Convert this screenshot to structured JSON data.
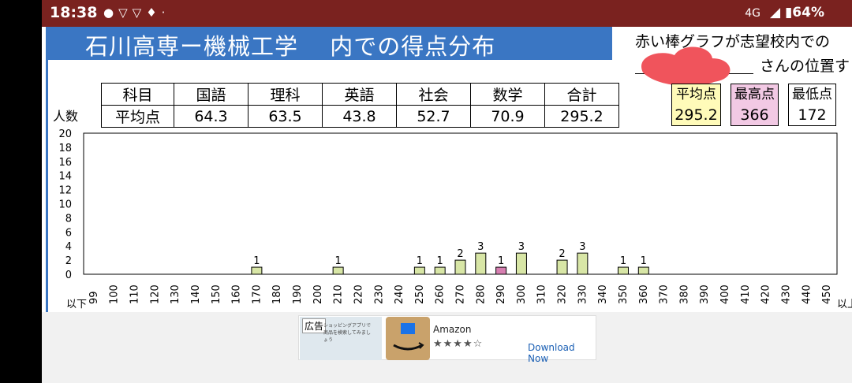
{
  "status": {
    "time": "18:38",
    "notif_icons": [
      "line-icon",
      "notification-icon",
      "notification-icon",
      "location-icon",
      "dot-icon"
    ],
    "network": "4G",
    "battery": "64%"
  },
  "viewer": {
    "title": "石川高専ー機械工学　 内での得点分布",
    "note_line1": "赤い棒グラフが志望校内での",
    "note_line2": "さんの位置す"
  },
  "scores": {
    "row1": [
      "科目",
      "国語",
      "理科",
      "英語",
      "社会",
      "数学",
      "合計"
    ],
    "row2": [
      "平均点",
      "64.3",
      "63.5",
      "43.8",
      "52.7",
      "70.9",
      "295.2"
    ]
  },
  "stats": [
    {
      "label": "平均点",
      "value": "295.2",
      "bg": "#fffbb9"
    },
    {
      "label": "最高点",
      "value": "366",
      "bg": "#f2c9e4"
    },
    {
      "label": "最低点",
      "value": "172",
      "bg": "#ffffff"
    }
  ],
  "chart_data": {
    "type": "bar",
    "ylabel": "人数",
    "ylim": [
      0,
      20
    ],
    "yticks": [
      0,
      2,
      4,
      6,
      8,
      10,
      12,
      14,
      16,
      18,
      20
    ],
    "categories": [
      "99",
      "100",
      "110",
      "120",
      "130",
      "140",
      "150",
      "160",
      "170",
      "180",
      "190",
      "200",
      "210",
      "220",
      "230",
      "240",
      "250",
      "260",
      "270",
      "280",
      "290",
      "300",
      "310",
      "320",
      "330",
      "340",
      "350",
      "360",
      "370",
      "380",
      "390",
      "400",
      "410",
      "420",
      "430",
      "440",
      "450"
    ],
    "first_sublabel": "以下",
    "last_sublabel": "以上",
    "values": [
      0,
      0,
      0,
      0,
      0,
      0,
      0,
      0,
      1,
      0,
      0,
      0,
      1,
      0,
      0,
      0,
      1,
      1,
      2,
      3,
      1,
      3,
      0,
      2,
      3,
      0,
      1,
      1,
      0,
      0,
      0,
      0,
      0,
      0,
      0,
      0,
      0
    ],
    "highlight_category": "290",
    "colors": {
      "bar": "#d8e6a6",
      "highlight": "#d77fb1"
    }
  },
  "ad": {
    "tag": "広告",
    "small_text": "ショッピングアプリで 商品を検索してみましょう",
    "title": "Amazon",
    "stars": "★★★★☆",
    "cta": "Download Now"
  }
}
